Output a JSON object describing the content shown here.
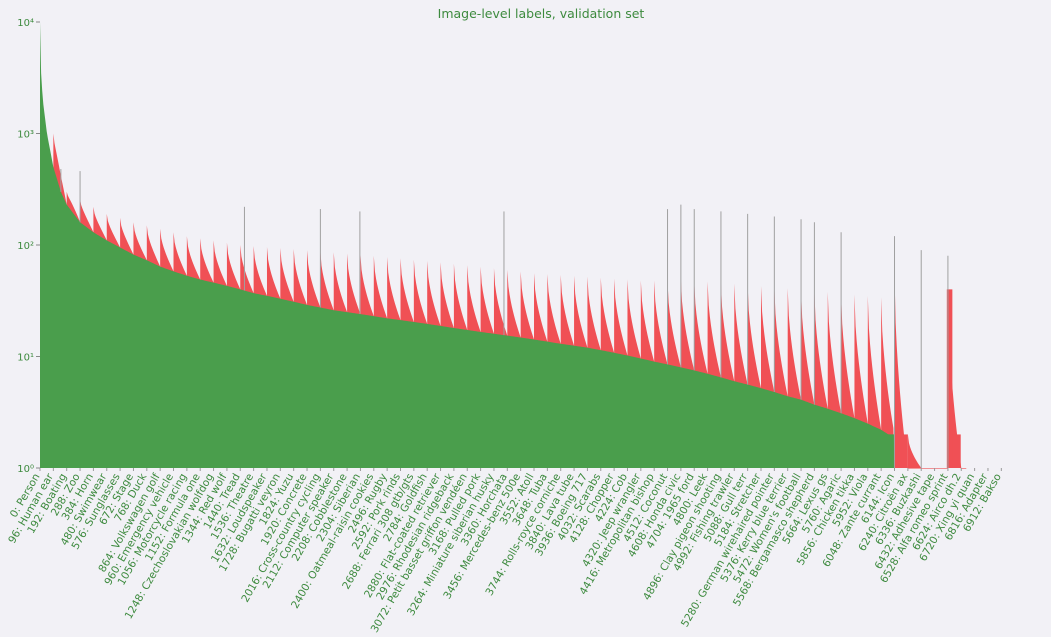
{
  "chart_data": {
    "type": "bar",
    "title": "Image-level labels, validation set",
    "xlabel": "",
    "ylabel": "",
    "yscale": "log",
    "ylim": [
      1,
      10000
    ],
    "x_range": [
      0,
      6960
    ],
    "grid": false,
    "series": [
      {
        "color": "#4a9e4c",
        "description_values": "smooth_green_curve"
      },
      {
        "color": "#f05055",
        "description_values": "red_sawtooth_curve"
      }
    ],
    "y_ticks": [
      {
        "value": 1,
        "label": "10⁰"
      },
      {
        "value": 10,
        "label": "10¹"
      },
      {
        "value": 100,
        "label": "10²"
      },
      {
        "value": 1000,
        "label": "10³"
      },
      {
        "value": 10000,
        "label": "10⁴"
      }
    ],
    "green_curve_points": [
      [
        0,
        10000
      ],
      [
        5,
        4000
      ],
      [
        20,
        2000
      ],
      [
        50,
        1000
      ],
      [
        96,
        500
      ],
      [
        150,
        300
      ],
      [
        192,
        230
      ],
      [
        288,
        160
      ],
      [
        384,
        130
      ],
      [
        480,
        110
      ],
      [
        576,
        95
      ],
      [
        672,
        82
      ],
      [
        768,
        73
      ],
      [
        864,
        64
      ],
      [
        960,
        58
      ],
      [
        1056,
        53
      ],
      [
        1152,
        49
      ],
      [
        1248,
        46
      ],
      [
        1344,
        43
      ],
      [
        1440,
        40
      ],
      [
        1536,
        37
      ],
      [
        1632,
        35
      ],
      [
        1728,
        33
      ],
      [
        1824,
        31
      ],
      [
        1920,
        29
      ],
      [
        2016,
        27.5
      ],
      [
        2112,
        26
      ],
      [
        2208,
        25
      ],
      [
        2304,
        24
      ],
      [
        2400,
        23
      ],
      [
        2496,
        22
      ],
      [
        2592,
        21.2
      ],
      [
        2688,
        20.4
      ],
      [
        2784,
        19.6
      ],
      [
        2880,
        18.8
      ],
      [
        2976,
        18
      ],
      [
        3072,
        17.3
      ],
      [
        3168,
        16.6
      ],
      [
        3264,
        16
      ],
      [
        3360,
        15.4
      ],
      [
        3456,
        14.8
      ],
      [
        3552,
        14.2
      ],
      [
        3648,
        13.6
      ],
      [
        3744,
        13
      ],
      [
        3840,
        12.5
      ],
      [
        3936,
        12
      ],
      [
        4032,
        11.4
      ],
      [
        4128,
        10.8
      ],
      [
        4224,
        10.2
      ],
      [
        4320,
        9.6
      ],
      [
        4416,
        9
      ],
      [
        4512,
        8.5
      ],
      [
        4608,
        8
      ],
      [
        4704,
        7.5
      ],
      [
        4800,
        7
      ],
      [
        4896,
        6.5
      ],
      [
        4992,
        6
      ],
      [
        5088,
        5.6
      ],
      [
        5184,
        5.2
      ],
      [
        5280,
        4.8
      ],
      [
        5376,
        4.4
      ],
      [
        5472,
        4.1
      ],
      [
        5568,
        3.7
      ],
      [
        5664,
        3.4
      ],
      [
        5760,
        3.1
      ],
      [
        5856,
        2.8
      ],
      [
        5952,
        2.5
      ],
      [
        6048,
        2.2
      ],
      [
        6100,
        2
      ],
      [
        6140,
        2
      ]
    ],
    "red_peaks": [
      [
        96,
        1000
      ],
      [
        192,
        300
      ],
      [
        288,
        260
      ],
      [
        384,
        220
      ],
      [
        480,
        190
      ],
      [
        576,
        175
      ],
      [
        672,
        160
      ],
      [
        768,
        150
      ],
      [
        864,
        140
      ],
      [
        960,
        130
      ],
      [
        1056,
        120
      ],
      [
        1152,
        115
      ],
      [
        1248,
        110
      ],
      [
        1344,
        105
      ],
      [
        1440,
        100
      ],
      [
        1536,
        98
      ],
      [
        1632,
        96
      ],
      [
        1728,
        94
      ],
      [
        1824,
        92
      ],
      [
        1920,
        90
      ],
      [
        2016,
        88
      ],
      [
        2112,
        86
      ],
      [
        2208,
        84
      ],
      [
        2304,
        82
      ],
      [
        2400,
        80
      ],
      [
        2496,
        78
      ],
      [
        2592,
        76
      ],
      [
        2688,
        74
      ],
      [
        2784,
        72
      ],
      [
        2880,
        70
      ],
      [
        2976,
        68
      ],
      [
        3072,
        66
      ],
      [
        3168,
        64
      ],
      [
        3264,
        62
      ],
      [
        3360,
        60
      ],
      [
        3456,
        58
      ],
      [
        3552,
        56
      ],
      [
        3648,
        55
      ],
      [
        3744,
        54
      ],
      [
        3840,
        53
      ],
      [
        3936,
        52
      ],
      [
        4032,
        51
      ],
      [
        4128,
        50
      ],
      [
        4224,
        49
      ],
      [
        4320,
        48
      ],
      [
        4416,
        48
      ],
      [
        4512,
        47
      ],
      [
        4608,
        50
      ],
      [
        4704,
        48
      ],
      [
        4800,
        47
      ],
      [
        4896,
        46
      ],
      [
        4992,
        45
      ],
      [
        5088,
        44
      ],
      [
        5184,
        43
      ],
      [
        5280,
        42
      ],
      [
        5376,
        41
      ],
      [
        5472,
        40
      ],
      [
        5568,
        39
      ],
      [
        5664,
        38
      ],
      [
        5760,
        37
      ],
      [
        5856,
        36
      ],
      [
        5952,
        35
      ],
      [
        6048,
        34
      ],
      [
        6144,
        56
      ],
      [
        6240,
        2
      ],
      [
        6336,
        1
      ],
      [
        6528,
        40
      ]
    ],
    "red_extra_spans": [
      [
        6140,
        6240,
        2
      ],
      [
        6240,
        6340,
        1.001
      ],
      [
        6336,
        6432,
        1
      ],
      [
        6432,
        6528,
        1
      ],
      [
        6520,
        6560,
        40
      ],
      [
        6560,
        6620,
        2
      ],
      [
        6620,
        6660,
        1
      ]
    ],
    "grey_spikes": [
      [
        150,
        480
      ],
      [
        288,
        460
      ],
      [
        1470,
        220
      ],
      [
        2016,
        210
      ],
      [
        2300,
        200
      ],
      [
        3336,
        200
      ],
      [
        4512,
        210
      ],
      [
        4608,
        230
      ],
      [
        4704,
        210
      ],
      [
        4896,
        200
      ],
      [
        5088,
        190
      ],
      [
        5280,
        180
      ],
      [
        5472,
        170
      ],
      [
        5568,
        160
      ],
      [
        5760,
        130
      ],
      [
        6144,
        120
      ],
      [
        6336,
        90
      ],
      [
        6528,
        80
      ]
    ],
    "x_tick_labels": [
      {
        "x": 0,
        "label": "0: Person"
      },
      {
        "x": 96,
        "label": "96: Human ear"
      },
      {
        "x": 192,
        "label": "192: Boating"
      },
      {
        "x": 288,
        "label": "288: Zoo"
      },
      {
        "x": 384,
        "label": "384: Horn"
      },
      {
        "x": 480,
        "label": "480: Swimwear"
      },
      {
        "x": 576,
        "label": "576: Sunglasses"
      },
      {
        "x": 672,
        "label": "672: Stage"
      },
      {
        "x": 768,
        "label": "768: Duck"
      },
      {
        "x": 864,
        "label": "864: Volkswagen golf"
      },
      {
        "x": 960,
        "label": "960: Emergency vehicle"
      },
      {
        "x": 1056,
        "label": "1056: Motorcycle racing"
      },
      {
        "x": 1152,
        "label": "1152: Formula one"
      },
      {
        "x": 1248,
        "label": "1248: Czechoslovakian wolfdog"
      },
      {
        "x": 1344,
        "label": "1344: Red wolf"
      },
      {
        "x": 1440,
        "label": "1440: Tread"
      },
      {
        "x": 1536,
        "label": "1536: Theatre"
      },
      {
        "x": 1632,
        "label": "1632: Loudspeaker"
      },
      {
        "x": 1728,
        "label": "1728: Bugatti veyron"
      },
      {
        "x": 1824,
        "label": "1824: Yuzu"
      },
      {
        "x": 1920,
        "label": "1920: Concrete"
      },
      {
        "x": 2016,
        "label": "2016: Cross-country cycling"
      },
      {
        "x": 2112,
        "label": "2112: Computer speaker"
      },
      {
        "x": 2208,
        "label": "2208: Cobblestone"
      },
      {
        "x": 2304,
        "label": "2304: Siberian"
      },
      {
        "x": 2400,
        "label": "2400: Oatmeal-raisin cookies"
      },
      {
        "x": 2496,
        "label": "2496: Rugby"
      },
      {
        "x": 2592,
        "label": "2592: Pork rinds"
      },
      {
        "x": 2688,
        "label": "2688: Ferrari 308 gtb/gts"
      },
      {
        "x": 2784,
        "label": "2784: Goldfish"
      },
      {
        "x": 2880,
        "label": "2880: Flat-coated retriever"
      },
      {
        "x": 2976,
        "label": "2976: Rhodesian ridgeback"
      },
      {
        "x": 3072,
        "label": "3072: Petit basset griffon vendéen"
      },
      {
        "x": 3168,
        "label": "3168: Pulled pork"
      },
      {
        "x": 3264,
        "label": "3264: Miniature siberian husky"
      },
      {
        "x": 3360,
        "label": "3360: Horchata"
      },
      {
        "x": 3456,
        "label": "3456: Mercedes-benz 500e"
      },
      {
        "x": 3552,
        "label": "3552: Atoll"
      },
      {
        "x": 3648,
        "label": "3648: Tuba"
      },
      {
        "x": 3744,
        "label": "3744: Rolls-royce corniche"
      },
      {
        "x": 3840,
        "label": "3840: Lava tube"
      },
      {
        "x": 3936,
        "label": "3936: Boeing 717"
      },
      {
        "x": 4032,
        "label": "4032: Scarabs"
      },
      {
        "x": 4128,
        "label": "4128: Chopper"
      },
      {
        "x": 4224,
        "label": "4224: Cob"
      },
      {
        "x": 4320,
        "label": "4320: Jeep wrangler"
      },
      {
        "x": 4416,
        "label": "4416: Metropolitan bishop"
      },
      {
        "x": 4512,
        "label": "4512: Coconut"
      },
      {
        "x": 4608,
        "label": "4608: Honda civic"
      },
      {
        "x": 4704,
        "label": "4704: 1965 ford"
      },
      {
        "x": 4800,
        "label": "4800: Leek"
      },
      {
        "x": 4896,
        "label": "4896: Clay pigeon shooting"
      },
      {
        "x": 4992,
        "label": "4992: Fishing trawler"
      },
      {
        "x": 5088,
        "label": "5088: Gull terr"
      },
      {
        "x": 5184,
        "label": "5184: Stretcher"
      },
      {
        "x": 5280,
        "label": "5280: German wirehaired pointer"
      },
      {
        "x": 5376,
        "label": "5376: Kerry blue terrier"
      },
      {
        "x": 5472,
        "label": "5472: Women's football"
      },
      {
        "x": 5568,
        "label": "5568: Bergamasco shepherd"
      },
      {
        "x": 5664,
        "label": "5664: Lexus gs"
      },
      {
        "x": 5760,
        "label": "5760: Agaric"
      },
      {
        "x": 5856,
        "label": "5856: Chicken tikka"
      },
      {
        "x": 5952,
        "label": "5952: Viola"
      },
      {
        "x": 6048,
        "label": "6048: Zante currant"
      },
      {
        "x": 6144,
        "label": "6144: Icon"
      },
      {
        "x": 6240,
        "label": "6240: Citroën ax"
      },
      {
        "x": 6336,
        "label": "6336: Buzkashi"
      },
      {
        "x": 6432,
        "label": "6432: Adhesive tape"
      },
      {
        "x": 6528,
        "label": "6528: Alfa romeo sprint"
      },
      {
        "x": 6624,
        "label": "6624: Airco dh.2"
      },
      {
        "x": 6720,
        "label": "6720: Xing yi quan"
      },
      {
        "x": 6816,
        "label": "6816: Adapter"
      },
      {
        "x": 6912,
        "label": "6912: Bakso"
      }
    ]
  }
}
